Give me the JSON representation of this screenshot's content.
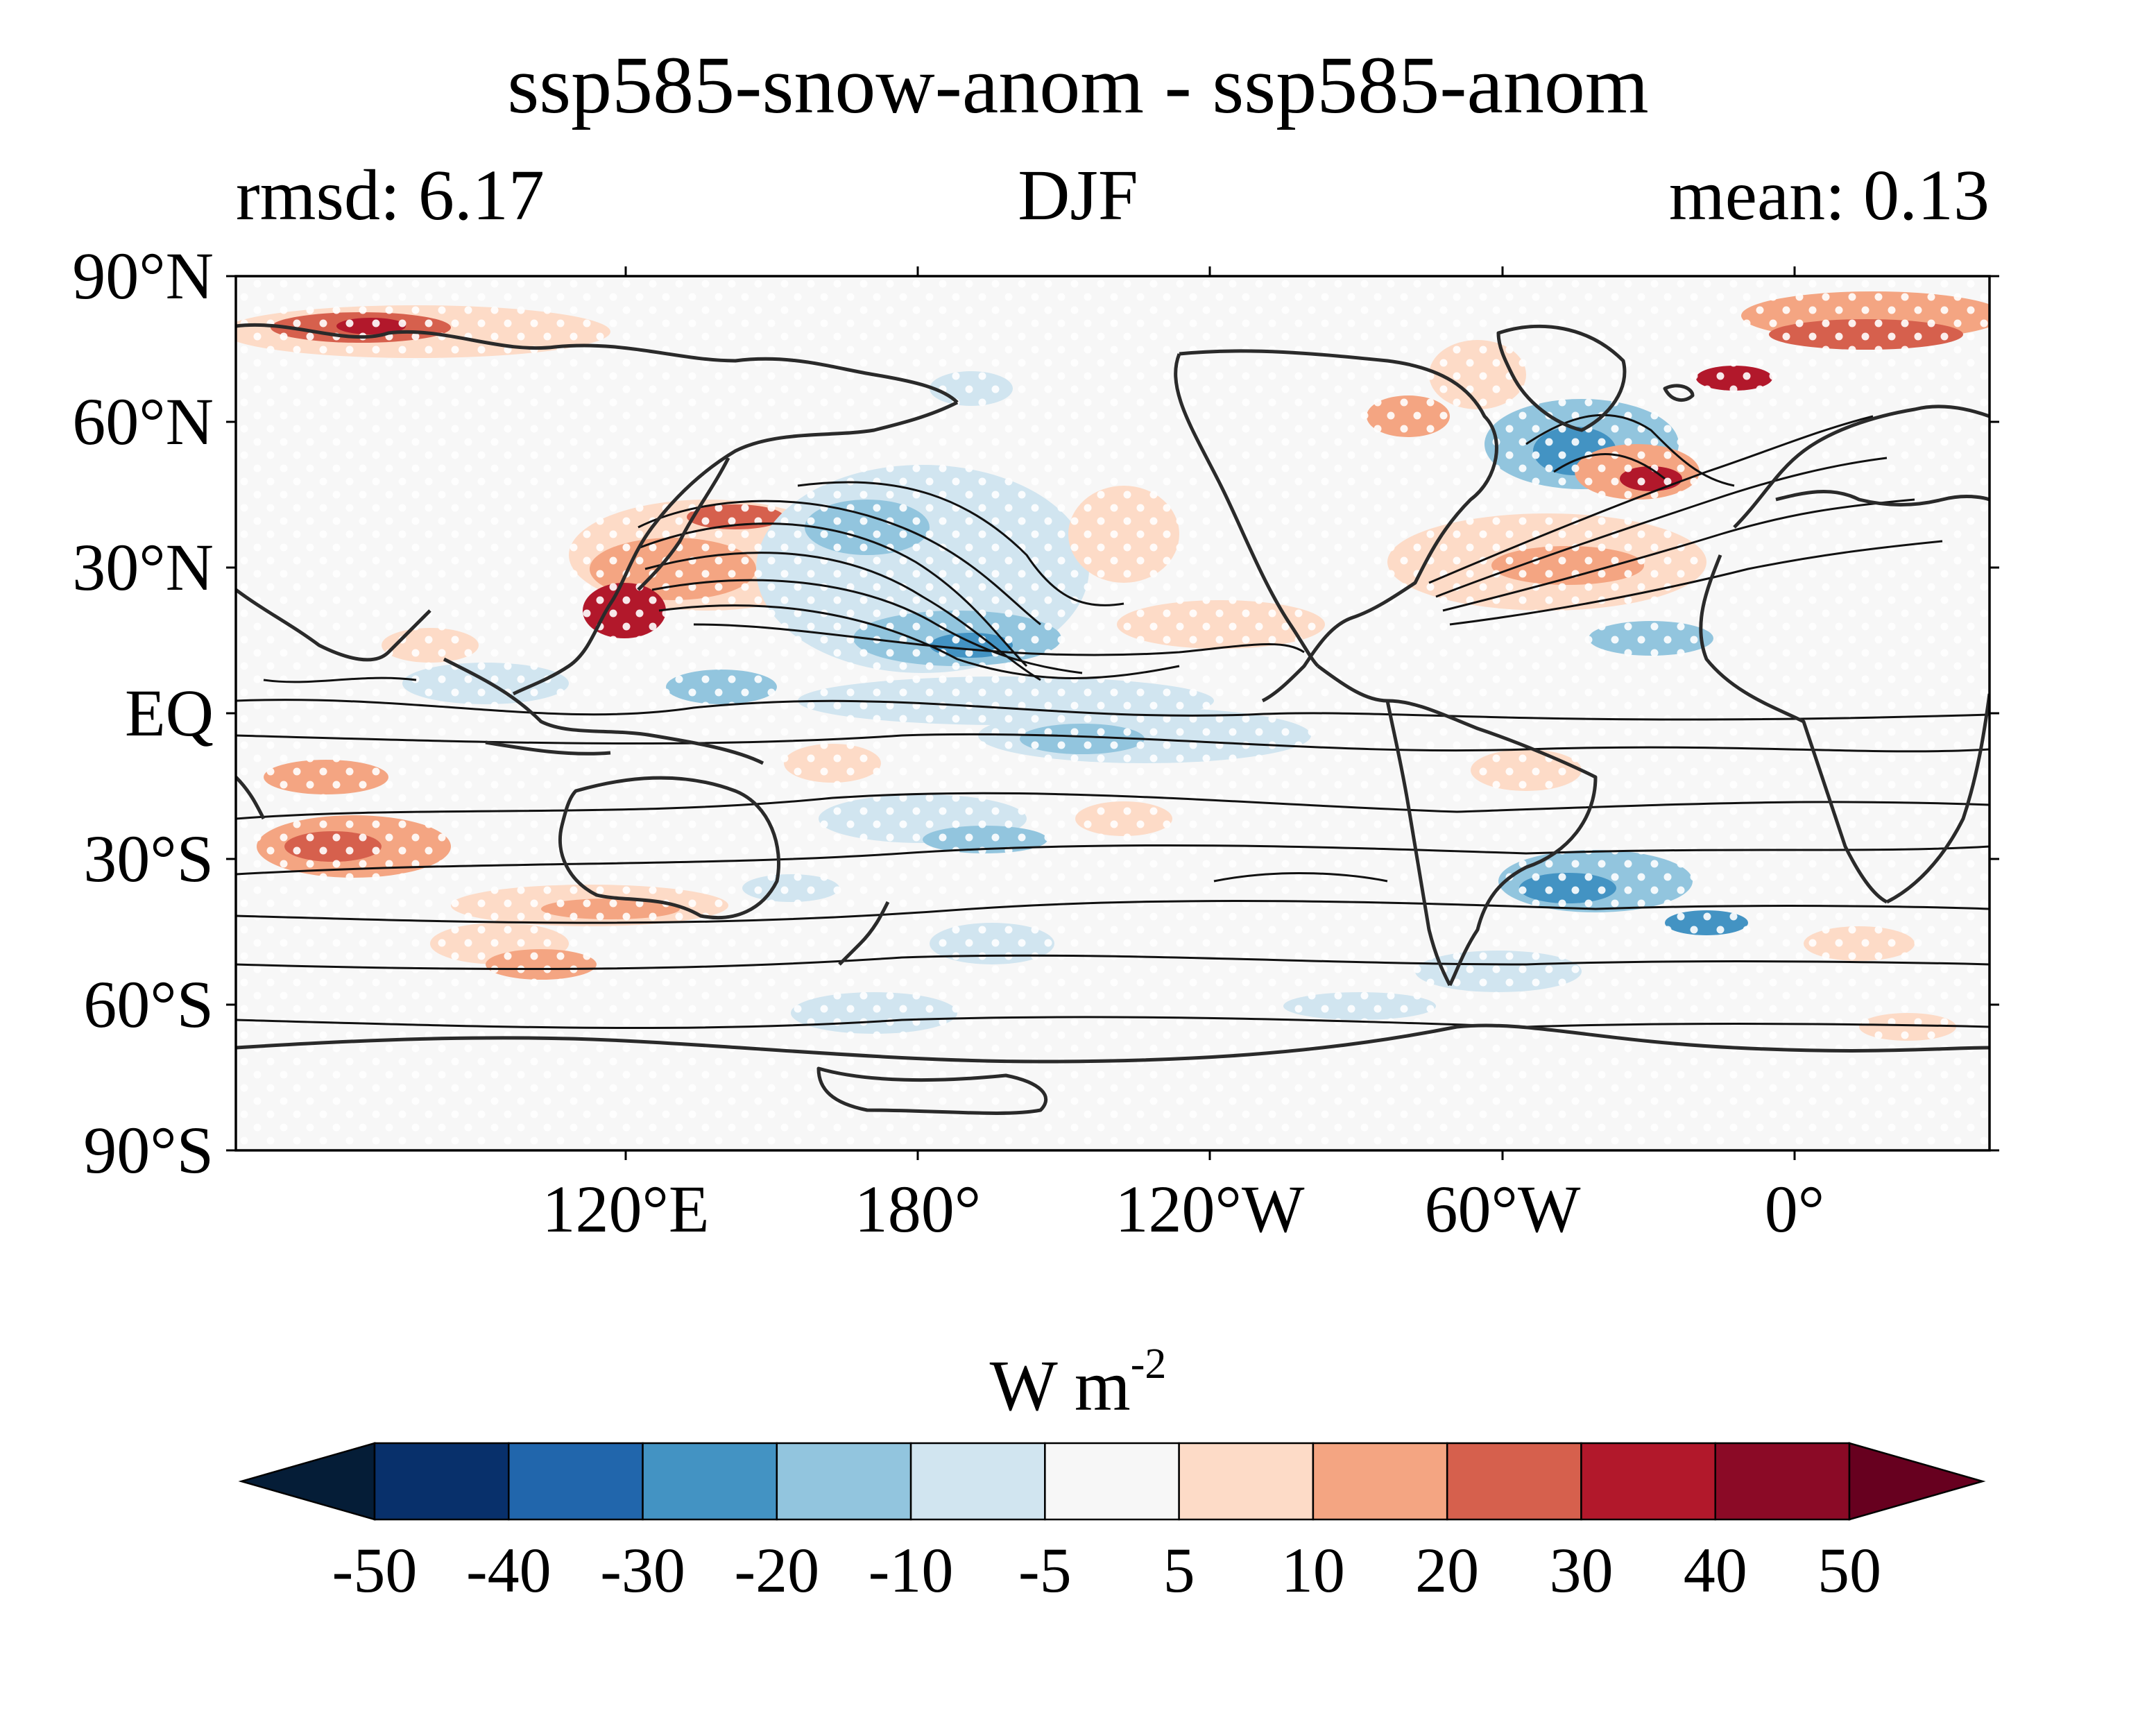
{
  "title": "ssp585-snow-anom - ssp585-anom",
  "subtitle_left": "rmsd: 6.17",
  "subtitle_center": "DJF",
  "subtitle_right": "mean: 0.13",
  "lat_ticks": [
    "90°N",
    "60°N",
    "30°N",
    "EQ",
    "30°S",
    "60°S",
    "90°S"
  ],
  "lon_ticks": [
    "120°E",
    "180°",
    "120°W",
    "60°W",
    "0°"
  ],
  "colorbar": {
    "label_main": "W m",
    "label_exp": "-2",
    "ticks": [
      "-50",
      "-40",
      "-30",
      "-20",
      "-10",
      "-5",
      "5",
      "10",
      "20",
      "30",
      "40",
      "50"
    ],
    "colors": [
      "#08306b",
      "#2166ac",
      "#4393c3",
      "#92c5de",
      "#d1e5f0",
      "#f7f7f7",
      "#fddbc7",
      "#f4a582",
      "#d6604d",
      "#b2182b",
      "#8b0a26"
    ],
    "extend_low_color": "#051d37",
    "extend_high_color": "#67001f"
  },
  "map": {
    "projection": "PlateCarree, central longitude 200°",
    "lon_range": [
      40,
      400
    ],
    "lat_range": [
      -90,
      90
    ]
  }
}
